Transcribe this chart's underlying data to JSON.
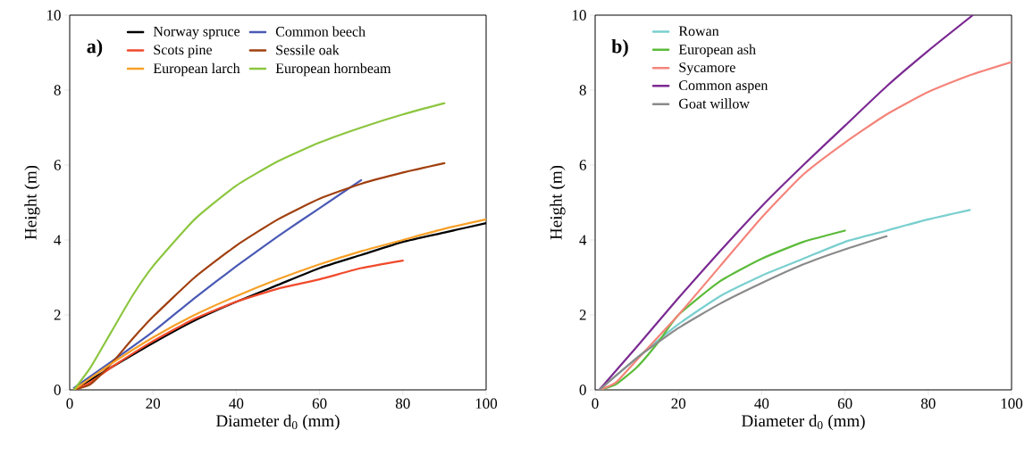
{
  "chart_data": [
    {
      "type": "line",
      "title": "a)",
      "xlabel": "Diameter d$_{0}$ (mm)",
      "ylabel": "Height (m)",
      "xlim": [
        0,
        100
      ],
      "ylim": [
        0,
        10
      ],
      "xticks": [
        0,
        20,
        40,
        60,
        80,
        100
      ],
      "yticks": [
        0,
        2,
        4,
        6,
        8,
        10
      ],
      "grid": false,
      "legend": "top left",
      "marker": "none",
      "line_style": "solid",
      "series": [
        {
          "name": "Norway spruce",
          "color": "#000000",
          "x": [
            1,
            10,
            20,
            30,
            40,
            50,
            60,
            70,
            80,
            90,
            100
          ],
          "values": [
            0,
            0.6,
            1.25,
            1.85,
            2.35,
            2.8,
            3.25,
            3.6,
            3.95,
            4.2,
            4.45
          ]
        },
        {
          "name": "Common beech",
          "color": "#4a5ab5",
          "x": [
            1,
            10,
            20,
            30,
            40,
            50,
            60,
            70
          ],
          "values": [
            0.05,
            0.75,
            1.55,
            2.45,
            3.3,
            4.1,
            4.85,
            5.6
          ]
        },
        {
          "name": "Scots pine",
          "color": "#f04a2c",
          "x": [
            1,
            5,
            10,
            20,
            30,
            40,
            50,
            60,
            70,
            80
          ],
          "values": [
            0,
            0.2,
            0.6,
            1.3,
            1.9,
            2.35,
            2.7,
            2.95,
            3.25,
            3.45
          ]
        },
        {
          "name": "Sessile oak",
          "color": "#a0400f",
          "x": [
            1,
            5,
            10,
            15,
            20,
            30,
            40,
            50,
            60,
            70,
            80,
            90
          ],
          "values": [
            0,
            0.15,
            0.7,
            1.35,
            1.95,
            3.0,
            3.85,
            4.55,
            5.1,
            5.5,
            5.8,
            6.05
          ]
        },
        {
          "name": "European larch",
          "color": "#f7a027",
          "x": [
            1,
            10,
            20,
            30,
            40,
            50,
            60,
            70,
            80,
            90,
            100
          ],
          "values": [
            0,
            0.7,
            1.4,
            2.0,
            2.5,
            2.95,
            3.35,
            3.7,
            4.0,
            4.3,
            4.55
          ]
        },
        {
          "name": "European hornbeam",
          "color": "#8cc63f",
          "x": [
            1,
            5,
            10,
            15,
            20,
            30,
            40,
            50,
            60,
            70,
            80,
            90
          ],
          "values": [
            0,
            0.6,
            1.55,
            2.5,
            3.3,
            4.55,
            5.45,
            6.1,
            6.6,
            7.0,
            7.35,
            7.65
          ]
        }
      ]
    },
    {
      "type": "line",
      "title": "b)",
      "xlabel": "Diameter d$_{0}$ (mm)",
      "ylabel": "Height (m)",
      "xlim": [
        0,
        100
      ],
      "ylim": [
        0,
        10
      ],
      "xticks": [
        0,
        20,
        40,
        60,
        80,
        100
      ],
      "yticks": [
        0,
        2,
        4,
        6,
        8,
        10
      ],
      "grid": false,
      "legend": "top left",
      "marker": "none",
      "line_style": "solid",
      "series": [
        {
          "name": "Rowan",
          "color": "#7acfcf",
          "x": [
            1,
            10,
            20,
            30,
            40,
            50,
            60,
            70,
            80,
            90
          ],
          "values": [
            0,
            0.85,
            1.75,
            2.5,
            3.05,
            3.5,
            3.95,
            4.25,
            4.55,
            4.8
          ]
        },
        {
          "name": "European ash",
          "color": "#5bbb3a",
          "x": [
            1,
            5,
            10,
            15,
            20,
            30,
            40,
            50,
            60
          ],
          "values": [
            0,
            0.15,
            0.6,
            1.25,
            2.0,
            2.9,
            3.5,
            3.95,
            4.25
          ]
        },
        {
          "name": "Sycamore",
          "color": "#f4847a",
          "x": [
            1,
            5,
            10,
            20,
            30,
            40,
            50,
            60,
            70,
            80,
            90,
            100
          ],
          "values": [
            0,
            0.2,
            0.8,
            2.0,
            3.3,
            4.6,
            5.75,
            6.6,
            7.35,
            7.95,
            8.4,
            8.75
          ]
        },
        {
          "name": "Common aspen",
          "color": "#7b2a92",
          "x": [
            1,
            10,
            20,
            30,
            40,
            50,
            60,
            70,
            80,
            90.7
          ],
          "values": [
            0,
            1.15,
            2.45,
            3.7,
            4.9,
            6.0,
            7.05,
            8.1,
            9.05,
            10
          ]
        },
        {
          "name": "Goat willow",
          "color": "#8a8a8a",
          "x": [
            1,
            10,
            20,
            30,
            40,
            50,
            60,
            70
          ],
          "values": [
            0,
            0.85,
            1.65,
            2.3,
            2.85,
            3.35,
            3.75,
            4.1
          ]
        }
      ]
    }
  ]
}
